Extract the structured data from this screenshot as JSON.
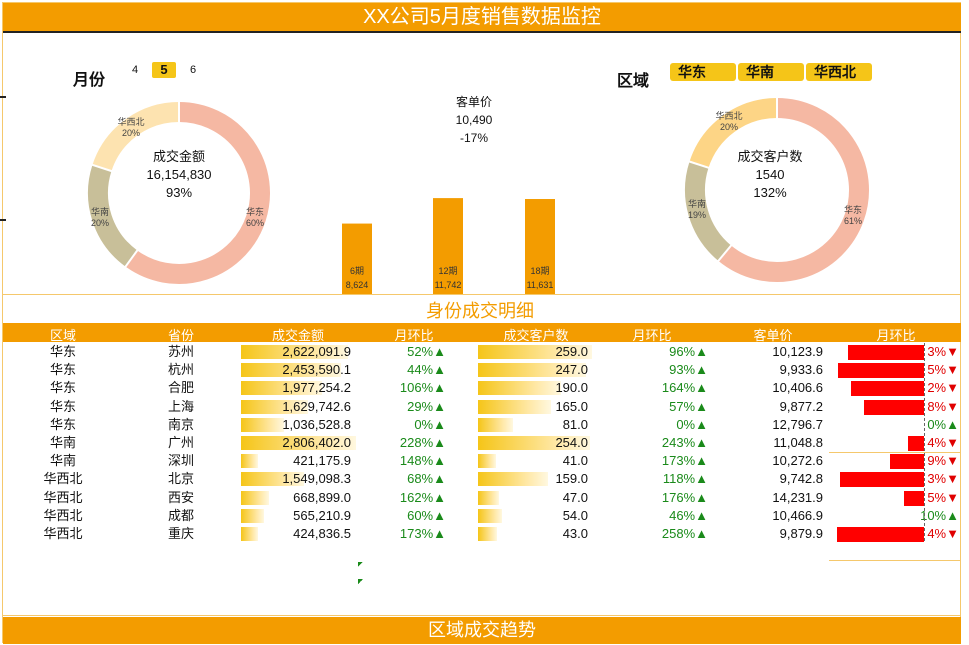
{
  "title": "XX公司5月度销售数据监控",
  "filters": {
    "month_label": "月份",
    "months": [
      "4",
      "5",
      "6"
    ],
    "active_month": "5",
    "region_label": "区域",
    "regions": [
      "华东",
      "华南",
      "华西北"
    ]
  },
  "donut_amount": {
    "title": "成交金额",
    "value": "16,154,830",
    "change": "93%",
    "segments": [
      {
        "name": "华东",
        "pct": "60%",
        "share": 60,
        "color": "#f5b8a3"
      },
      {
        "name": "华南",
        "pct": "20%",
        "share": 20,
        "color": "#c8bf99"
      },
      {
        "name": "华西北",
        "pct": "20%",
        "share": 20,
        "color": "#fde3b0"
      }
    ]
  },
  "donut_customers": {
    "title": "成交客户数",
    "value": "1540",
    "change": "132%",
    "segments": [
      {
        "name": "华东",
        "pct": "61%",
        "share": 61,
        "color": "#f5b8a3"
      },
      {
        "name": "华南",
        "pct": "19%",
        "share": 19,
        "color": "#c8bf99"
      },
      {
        "name": "华西北",
        "pct": "20%",
        "share": 20,
        "color": "#fdd586"
      }
    ]
  },
  "kpi_unit_price": {
    "label": "客单价",
    "value": "10,490",
    "change": "-17%"
  },
  "chart_data": {
    "type": "bar",
    "categories": [
      "6期",
      "12期",
      "18期"
    ],
    "values": [
      8624,
      11742,
      11631
    ],
    "value_labels": [
      "8,624",
      "11,742",
      "11,631"
    ],
    "title": "",
    "color": "#f39c00"
  },
  "section_detail": "身份成交明细",
  "section_trend": "区域成交趋势",
  "table": {
    "headers": [
      "区域",
      "省份",
      "成交金额",
      "月环比",
      "成交客户数",
      "月环比",
      "客单价",
      "月环比"
    ],
    "rows": [
      {
        "region": "华东",
        "province": "苏州",
        "amount": "2,622,091.9",
        "amount_level": 0.93,
        "amount_mom": "52%",
        "amount_dir": "up",
        "customers": "259.0",
        "cust_level": 1.0,
        "cust_mom": "96%",
        "cust_dir": "up",
        "price": "10,123.9",
        "price_mom": "3%",
        "price_dir": "down",
        "price_bar": 0.84
      },
      {
        "region": "华东",
        "province": "杭州",
        "amount": "2,453,590.1",
        "amount_level": 0.87,
        "amount_mom": "44%",
        "amount_dir": "up",
        "customers": "247.0",
        "cust_level": 0.95,
        "cust_mom": "93%",
        "cust_dir": "up",
        "price": "9,933.6",
        "price_mom": "5%",
        "price_dir": "down",
        "price_bar": 0.95
      },
      {
        "region": "华东",
        "province": "合肥",
        "amount": "1,977,254.2",
        "amount_level": 0.7,
        "amount_mom": "106%",
        "amount_dir": "up",
        "customers": "190.0",
        "cust_level": 0.73,
        "cust_mom": "164%",
        "cust_dir": "up",
        "price": "10,406.6",
        "price_mom": "2%",
        "price_dir": "down",
        "price_bar": 0.8
      },
      {
        "region": "华东",
        "province": "上海",
        "amount": "1,629,742.6",
        "amount_level": 0.58,
        "amount_mom": "29%",
        "amount_dir": "up",
        "customers": "165.0",
        "cust_level": 0.64,
        "cust_mom": "57%",
        "cust_dir": "up",
        "price": "9,877.2",
        "price_mom": "8%",
        "price_dir": "down",
        "price_bar": 0.66
      },
      {
        "region": "华东",
        "province": "南京",
        "amount": "1,036,528.8",
        "amount_level": 0.37,
        "amount_mom": "0%",
        "amount_dir": "up",
        "customers": "81.0",
        "cust_level": 0.31,
        "cust_mom": "0%",
        "cust_dir": "up",
        "price": "12,796.7",
        "price_mom": "0%",
        "price_dir": "up",
        "price_bar": 0
      },
      {
        "region": "华南",
        "province": "广州",
        "amount": "2,806,402.0",
        "amount_level": 1.0,
        "amount_mom": "228%",
        "amount_dir": "up",
        "customers": "254.0",
        "cust_level": 0.98,
        "cust_mom": "243%",
        "cust_dir": "up",
        "price": "11,048.8",
        "price_mom": "4%",
        "price_dir": "down",
        "price_bar": 0.18
      },
      {
        "region": "华南",
        "province": "深圳",
        "amount": "421,175.9",
        "amount_level": 0.15,
        "amount_mom": "148%",
        "amount_dir": "up",
        "customers": "41.0",
        "cust_level": 0.16,
        "cust_mom": "173%",
        "cust_dir": "up",
        "price": "10,272.6",
        "price_mom": "9%",
        "price_dir": "down",
        "price_bar": 0.37
      },
      {
        "region": "华西北",
        "province": "北京",
        "amount": "1,549,098.3",
        "amount_level": 0.55,
        "amount_mom": "68%",
        "amount_dir": "up",
        "customers": "159.0",
        "cust_level": 0.61,
        "cust_mom": "118%",
        "cust_dir": "up",
        "price": "9,742.8",
        "price_mom": "3%",
        "price_dir": "down",
        "price_bar": 0.92
      },
      {
        "region": "华西北",
        "province": "西安",
        "amount": "668,899.0",
        "amount_level": 0.24,
        "amount_mom": "162%",
        "amount_dir": "up",
        "customers": "47.0",
        "cust_level": 0.18,
        "cust_mom": "176%",
        "cust_dir": "up",
        "price": "14,231.9",
        "price_mom": "5%",
        "price_dir": "down",
        "price_bar": 0.22
      },
      {
        "region": "华西北",
        "province": "成都",
        "amount": "565,210.9",
        "amount_level": 0.2,
        "amount_mom": "60%",
        "amount_dir": "up",
        "customers": "54.0",
        "cust_level": 0.21,
        "cust_mom": "46%",
        "cust_dir": "up",
        "price": "10,466.9",
        "price_mom": "10%",
        "price_dir": "up",
        "price_bar": 0
      },
      {
        "region": "华西北",
        "province": "重庆",
        "amount": "424,836.5",
        "amount_level": 0.15,
        "amount_mom": "173%",
        "amount_dir": "up",
        "customers": "43.0",
        "cust_level": 0.17,
        "cust_mom": "258%",
        "cust_dir": "up",
        "price": "9,879.9",
        "price_mom": "4%",
        "price_dir": "down",
        "price_bar": 0.96
      }
    ]
  },
  "colors": {
    "accent": "#f39c00",
    "button": "#f5c518",
    "up": "#1a8a1a",
    "down": "#ff0000"
  }
}
